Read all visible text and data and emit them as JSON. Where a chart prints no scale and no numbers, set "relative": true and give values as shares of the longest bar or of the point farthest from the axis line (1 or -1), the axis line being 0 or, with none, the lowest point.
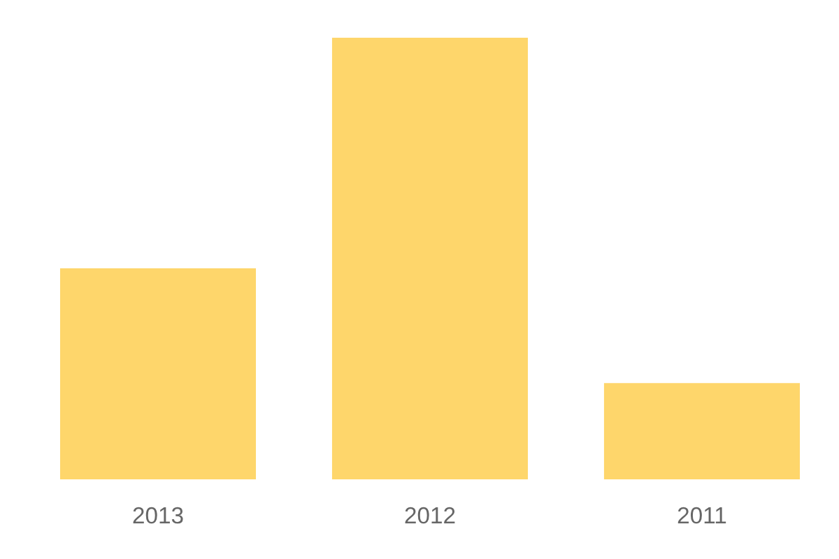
{
  "chart_data": {
    "type": "bar",
    "relative": true,
    "categories": [
      "2013",
      "2012",
      "2011"
    ],
    "values": [
      0.478,
      1,
      0.218
    ],
    "color": "#fed66b",
    "grid": false
  }
}
